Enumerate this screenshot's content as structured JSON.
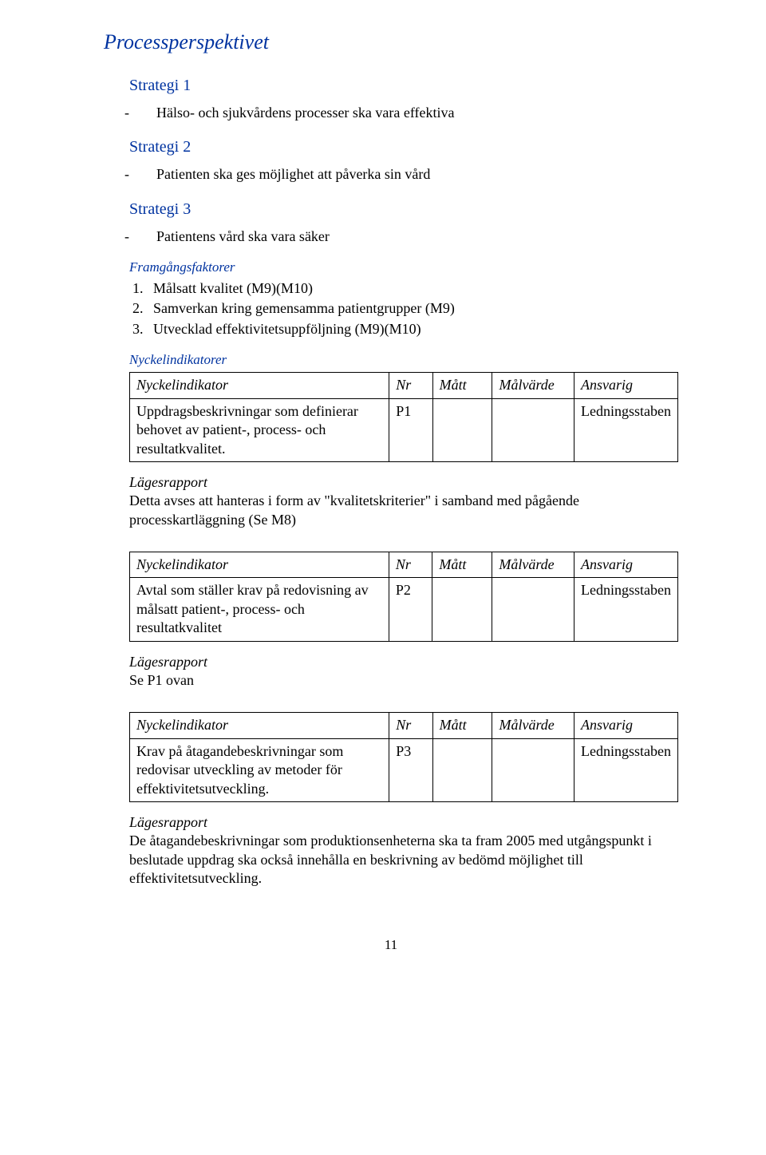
{
  "page_title": "Processperspektivet",
  "strategies": [
    {
      "heading": "Strategi 1",
      "item": "Hälso- och sjukvårdens processer ska vara effektiva"
    },
    {
      "heading": "Strategi 2",
      "item": "Patienten ska ges möjlighet att påverka sin vård"
    },
    {
      "heading": "Strategi 3",
      "item": "Patientens vård ska vara säker"
    }
  ],
  "framgang_heading": "Framgångsfaktorer",
  "framgang_items": [
    "Målsatt kvalitet  (M9)(M10)",
    "Samverkan kring gemensamma patientgrupper (M9)",
    "Utvecklad effektivitetsuppföljning (M9)(M10)"
  ],
  "nyckel_heading": "Nyckelindikatorer",
  "headers": {
    "col1": "Nyckelindikator",
    "col2": "Nr",
    "col3": "Mått",
    "col4": "Målvärde",
    "col5": "Ansvarig"
  },
  "lrap_label": "Lägesrapport",
  "tables": [
    {
      "row": {
        "desc": "Uppdragsbeskrivningar som definierar behovet av patient-, process- och resultatkvalitet.",
        "nr": "P1",
        "matt": "",
        "malvarde": "",
        "ansvarig": "Ledningsstaben"
      },
      "report": "Detta avses att hanteras i form av \"kvalitetskriterier\" i samband med pågående processkartläggning (Se M8)"
    },
    {
      "row": {
        "desc": "Avtal som ställer krav på redovisning av målsatt patient-, process- och resultatkvalitet",
        "nr": "P2",
        "matt": "",
        "malvarde": "",
        "ansvarig": "Ledningsstaben"
      },
      "report": "Se P1 ovan"
    },
    {
      "row": {
        "desc": "Krav på åtagandebeskrivningar som redovisar utveckling av metoder för effektivitetsutveckling.",
        "nr": "P3",
        "matt": "",
        "malvarde": "",
        "ansvarig": "Ledningsstaben"
      },
      "report": "De åtagandebeskrivningar som produktionsenheterna ska ta fram 2005 med utgångspunkt i beslutade uppdrag ska också innehålla en beskrivning av bedömd möjlighet till effektivitetsutveckling."
    }
  ],
  "page_number": "11"
}
